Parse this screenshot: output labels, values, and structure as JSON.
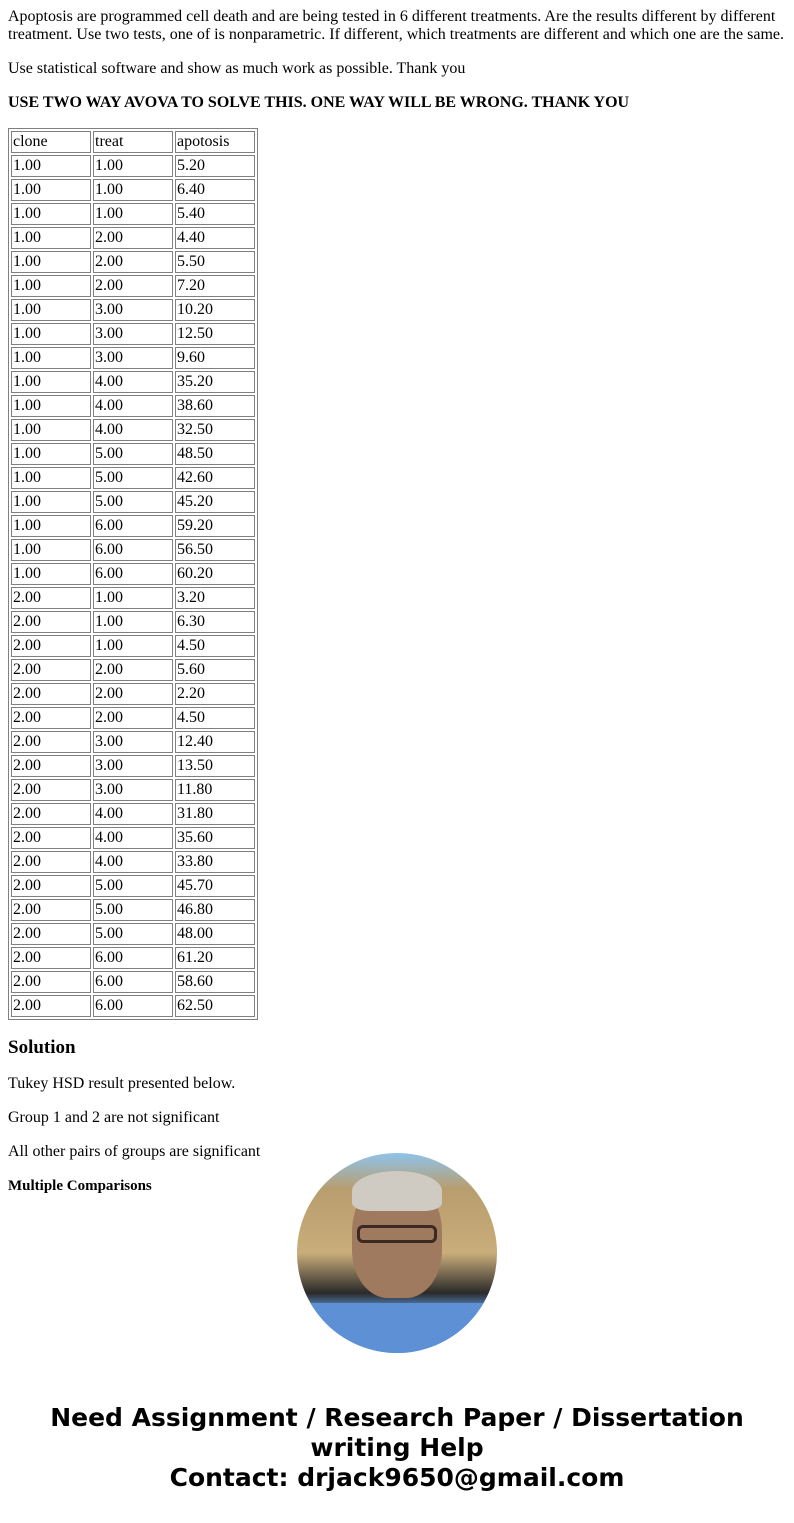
{
  "question": {
    "paragraph1": "Apoptosis are programmed cell death and are being tested in 6 different treatments. Are the results different by different treatment. Use two tests, one of is nonparametric. If different, which treatments are different and which one are the same.",
    "paragraph2": "Use statistical software and show as much work as possible. Thank you",
    "paragraph3": "USE TWO WAY AVOVA TO SOLVE THIS. ONE WAY WILL BE WRONG. THANK YOU"
  },
  "table": {
    "headers": [
      "clone",
      "treat",
      "apotosis"
    ],
    "rows": [
      [
        "1.00",
        "1.00",
        "5.20"
      ],
      [
        "1.00",
        "1.00",
        "6.40"
      ],
      [
        "1.00",
        "1.00",
        "5.40"
      ],
      [
        "1.00",
        "2.00",
        "4.40"
      ],
      [
        "1.00",
        "2.00",
        "5.50"
      ],
      [
        "1.00",
        "2.00",
        "7.20"
      ],
      [
        "1.00",
        "3.00",
        "10.20"
      ],
      [
        "1.00",
        "3.00",
        "12.50"
      ],
      [
        "1.00",
        "3.00",
        "9.60"
      ],
      [
        "1.00",
        "4.00",
        "35.20"
      ],
      [
        "1.00",
        "4.00",
        "38.60"
      ],
      [
        "1.00",
        "4.00",
        "32.50"
      ],
      [
        "1.00",
        "5.00",
        "48.50"
      ],
      [
        "1.00",
        "5.00",
        "42.60"
      ],
      [
        "1.00",
        "5.00",
        "45.20"
      ],
      [
        "1.00",
        "6.00",
        "59.20"
      ],
      [
        "1.00",
        "6.00",
        "56.50"
      ],
      [
        "1.00",
        "6.00",
        "60.20"
      ],
      [
        "2.00",
        "1.00",
        "3.20"
      ],
      [
        "2.00",
        "1.00",
        "6.30"
      ],
      [
        "2.00",
        "1.00",
        "4.50"
      ],
      [
        "2.00",
        "2.00",
        "5.60"
      ],
      [
        "2.00",
        "2.00",
        "2.20"
      ],
      [
        "2.00",
        "2.00",
        "4.50"
      ],
      [
        "2.00",
        "3.00",
        "12.40"
      ],
      [
        "2.00",
        "3.00",
        "13.50"
      ],
      [
        "2.00",
        "3.00",
        "11.80"
      ],
      [
        "2.00",
        "4.00",
        "31.80"
      ],
      [
        "2.00",
        "4.00",
        "35.60"
      ],
      [
        "2.00",
        "4.00",
        "33.80"
      ],
      [
        "2.00",
        "5.00",
        "45.70"
      ],
      [
        "2.00",
        "5.00",
        "46.80"
      ],
      [
        "2.00",
        "5.00",
        "48.00"
      ],
      [
        "2.00",
        "6.00",
        "61.20"
      ],
      [
        "2.00",
        "6.00",
        "58.60"
      ],
      [
        "2.00",
        "6.00",
        "62.50"
      ]
    ]
  },
  "solution": {
    "heading": "Solution",
    "line1": "Tukey HSD result presented below.",
    "line2": "Group 1 and 2 are not significant",
    "line3": "All other pairs of groups are significant",
    "subheading": "Multiple Comparisons"
  },
  "footer": {
    "line1": "Need Assignment / Research Paper / Dissertation writing Help",
    "line2": "Contact: drjack9650@gmail.com"
  }
}
